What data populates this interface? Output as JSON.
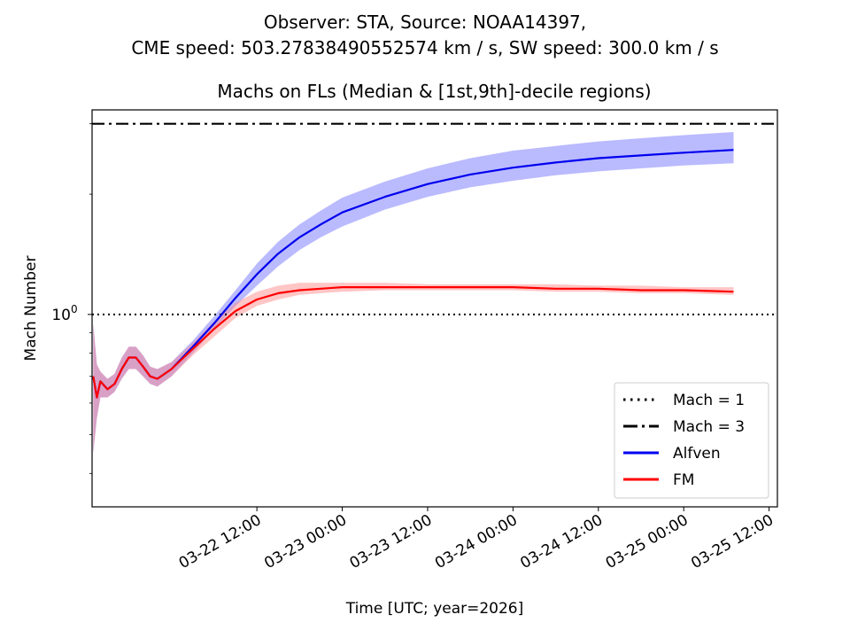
{
  "figure": {
    "suptitle_line1": "Observer: STA, Source: NOAA14397,",
    "suptitle_line2": "CME speed: 503.27838490552574 km / s, SW speed: 300.0 km / s"
  },
  "chart_data": {
    "type": "line",
    "title": "Machs on FLs (Median & [1st,9th]-decile regions)",
    "xlabel": "Time [UTC; year=2026]",
    "ylabel": "Mach Number",
    "yscale": "log",
    "x_tick_labels": [
      "03-22 12:00",
      "03-23 00:00",
      "03-23 12:00",
      "03-24 00:00",
      "03-24 12:00",
      "03-25 00:00",
      "03-25 12:00"
    ],
    "x_ticks": [
      "2026-03-22T12:00",
      "2026-03-23T00:00",
      "2026-03-23T12:00",
      "2026-03-24T00:00",
      "2026-03-24T12:00",
      "2026-03-25T00:00",
      "2026-03-25T12:00"
    ],
    "xlim": [
      "2026-03-21T12:50",
      "2026-03-25T13:10"
    ],
    "y_tick_labels": [
      {
        "base": "10",
        "exp": "0",
        "value": 1
      }
    ],
    "ylim": [
      0.33,
      3.25
    ],
    "grid": false,
    "legend_position": "lower-right",
    "reference_lines": [
      {
        "name": "Mach = 1",
        "value": 1,
        "style": "dotted",
        "color": "#000000"
      },
      {
        "name": "Mach = 3",
        "value": 3,
        "style": "dashdot",
        "color": "#000000"
      }
    ],
    "series": [
      {
        "name": "Alfven",
        "color": "#0000ee",
        "band_color": "#6666ff",
        "x": [
          "2026-03-21T13:00",
          "2026-03-21T13:30",
          "2026-03-21T14:00",
          "2026-03-21T15:00",
          "2026-03-21T16:00",
          "2026-03-21T17:00",
          "2026-03-21T18:00",
          "2026-03-21T19:00",
          "2026-03-21T20:00",
          "2026-03-21T21:00",
          "2026-03-21T22:00",
          "2026-03-22T00:00",
          "2026-03-22T03:00",
          "2026-03-22T06:00",
          "2026-03-22T09:00",
          "2026-03-22T12:00",
          "2026-03-22T15:00",
          "2026-03-22T18:00",
          "2026-03-22T21:00",
          "2026-03-23T00:00",
          "2026-03-23T06:00",
          "2026-03-23T12:00",
          "2026-03-23T18:00",
          "2026-03-24T00:00",
          "2026-03-24T06:00",
          "2026-03-24T12:00",
          "2026-03-24T18:00",
          "2026-03-25T00:00",
          "2026-03-25T07:00"
        ],
        "median": [
          0.7,
          0.62,
          0.68,
          0.65,
          0.67,
          0.73,
          0.78,
          0.78,
          0.74,
          0.7,
          0.69,
          0.73,
          0.83,
          0.95,
          1.1,
          1.26,
          1.42,
          1.56,
          1.68,
          1.8,
          1.97,
          2.12,
          2.24,
          2.33,
          2.4,
          2.46,
          2.5,
          2.54,
          2.58
        ],
        "decile_1": [
          0.45,
          0.55,
          0.62,
          0.62,
          0.64,
          0.69,
          0.73,
          0.73,
          0.7,
          0.67,
          0.66,
          0.7,
          0.8,
          0.92,
          1.05,
          1.18,
          1.32,
          1.45,
          1.56,
          1.66,
          1.83,
          1.97,
          2.08,
          2.16,
          2.23,
          2.28,
          2.32,
          2.36,
          2.39
        ],
        "decile_9": [
          0.95,
          0.75,
          0.72,
          0.69,
          0.71,
          0.78,
          0.83,
          0.83,
          0.79,
          0.74,
          0.73,
          0.76,
          0.86,
          0.99,
          1.15,
          1.34,
          1.52,
          1.68,
          1.82,
          1.96,
          2.15,
          2.32,
          2.46,
          2.57,
          2.64,
          2.71,
          2.76,
          2.81,
          2.86
        ]
      },
      {
        "name": "FM",
        "color": "#ff0000",
        "band_color": "#ff8080",
        "x": [
          "2026-03-21T13:00",
          "2026-03-21T13:30",
          "2026-03-21T14:00",
          "2026-03-21T15:00",
          "2026-03-21T16:00",
          "2026-03-21T17:00",
          "2026-03-21T18:00",
          "2026-03-21T19:00",
          "2026-03-21T20:00",
          "2026-03-21T21:00",
          "2026-03-21T22:00",
          "2026-03-22T00:00",
          "2026-03-22T03:00",
          "2026-03-22T06:00",
          "2026-03-22T09:00",
          "2026-03-22T12:00",
          "2026-03-22T15:00",
          "2026-03-22T18:00",
          "2026-03-22T21:00",
          "2026-03-23T00:00",
          "2026-03-23T06:00",
          "2026-03-23T12:00",
          "2026-03-23T18:00",
          "2026-03-24T00:00",
          "2026-03-24T06:00",
          "2026-03-24T12:00",
          "2026-03-24T18:00",
          "2026-03-25T00:00",
          "2026-03-25T07:00"
        ],
        "median": [
          0.7,
          0.62,
          0.68,
          0.65,
          0.67,
          0.73,
          0.78,
          0.78,
          0.74,
          0.7,
          0.69,
          0.73,
          0.82,
          0.92,
          1.02,
          1.09,
          1.13,
          1.15,
          1.16,
          1.17,
          1.17,
          1.17,
          1.17,
          1.17,
          1.16,
          1.16,
          1.15,
          1.15,
          1.14
        ],
        "decile_1": [
          0.45,
          0.55,
          0.62,
          0.62,
          0.64,
          0.69,
          0.73,
          0.73,
          0.7,
          0.67,
          0.66,
          0.7,
          0.79,
          0.88,
          0.98,
          1.05,
          1.09,
          1.12,
          1.13,
          1.14,
          1.15,
          1.15,
          1.15,
          1.15,
          1.14,
          1.14,
          1.13,
          1.13,
          1.12
        ],
        "decile_9": [
          0.95,
          0.75,
          0.72,
          0.69,
          0.71,
          0.78,
          0.83,
          0.83,
          0.79,
          0.74,
          0.73,
          0.76,
          0.85,
          0.96,
          1.07,
          1.14,
          1.18,
          1.2,
          1.2,
          1.2,
          1.2,
          1.19,
          1.19,
          1.19,
          1.19,
          1.18,
          1.18,
          1.17,
          1.17
        ]
      }
    ]
  }
}
